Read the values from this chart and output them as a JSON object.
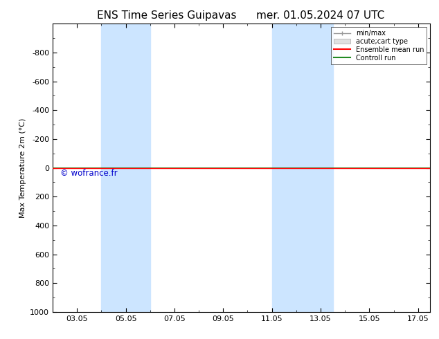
{
  "title_left": "ENS Time Series Guipavas",
  "title_right": "mer. 01.05.2024 07 UTC",
  "ylabel": "Max Temperature 2m (°C)",
  "ylim_top": -1000,
  "ylim_bottom": 1000,
  "yticks": [
    -800,
    -600,
    -400,
    -200,
    0,
    200,
    400,
    600,
    800,
    1000
  ],
  "xlim_left": 2.0,
  "xlim_right": 17.5,
  "xtick_labels": [
    "03.05",
    "05.05",
    "07.05",
    "09.05",
    "11.05",
    "13.05",
    "15.05",
    "17.05"
  ],
  "xtick_positions": [
    3,
    5,
    7,
    9,
    11,
    13,
    15,
    17
  ],
  "shaded_bands": [
    {
      "xmin": 4.0,
      "xmax": 5.0
    },
    {
      "xmin": 5.0,
      "xmax": 6.0
    },
    {
      "xmin": 11.0,
      "xmax": 12.0
    },
    {
      "xmin": 12.0,
      "xmax": 13.5
    }
  ],
  "green_line_y": 0,
  "red_line_y": 0,
  "watermark": "© wofrance.fr",
  "legend_labels": [
    "min/max",
    "acute;cart type",
    "Ensemble mean run",
    "Controll run"
  ],
  "bg_color": "#ffffff",
  "band_color": "#cce5ff",
  "green_color": "#228B22",
  "red_color": "#ff0000",
  "gray_color": "#999999",
  "watermark_color": "#0000cc"
}
